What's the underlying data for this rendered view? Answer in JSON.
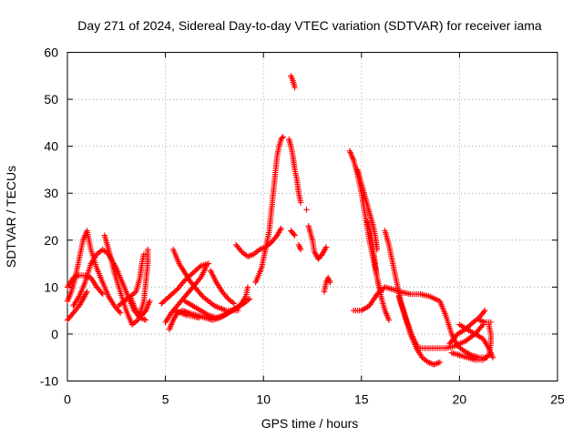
{
  "chart_data": {
    "type": "scatter",
    "title": "Day 271 of 2024, Sidereal Day-to-day VTEC variation (SDTVAR) for receiver iama",
    "xlabel": "GPS time / hours",
    "ylabel": "SDTVAR / TECUs",
    "xlim": [
      0,
      25
    ],
    "ylim": [
      -10,
      60
    ],
    "xticks": [
      0,
      5,
      10,
      15,
      20,
      25
    ],
    "yticks": [
      -10,
      0,
      10,
      20,
      30,
      40,
      50,
      60
    ],
    "xtick_labels": [
      "0",
      "5",
      "10",
      "15",
      "20",
      "25"
    ],
    "ytick_labels": [
      "-10",
      "0",
      "10",
      "20",
      "30",
      "40",
      "50",
      "60"
    ],
    "grid": true,
    "marker": "+",
    "color": "#ff0000",
    "legend": "none",
    "series": [
      {
        "name": "track-01",
        "points": [
          [
            0.0,
            7
          ],
          [
            0.2,
            9
          ],
          [
            0.4,
            12
          ],
          [
            0.6,
            16
          ],
          [
            0.8,
            20
          ],
          [
            1.0,
            22
          ],
          [
            1.2,
            18
          ],
          [
            1.5,
            14
          ],
          [
            1.8,
            11
          ],
          [
            2.1,
            8
          ],
          [
            2.4,
            6
          ],
          [
            2.7,
            4.5
          ]
        ]
      },
      {
        "name": "track-02",
        "points": [
          [
            0.0,
            10
          ],
          [
            0.3,
            12
          ],
          [
            0.6,
            12.5
          ],
          [
            0.9,
            12.5
          ],
          [
            1.2,
            12
          ],
          [
            1.5,
            10
          ],
          [
            1.8,
            8.5
          ]
        ]
      },
      {
        "name": "track-03",
        "points": [
          [
            0.0,
            3
          ],
          [
            0.3,
            4.5
          ],
          [
            0.6,
            6
          ],
          [
            0.8,
            7.5
          ],
          [
            1.0,
            9
          ]
        ]
      },
      {
        "name": "track-04",
        "points": [
          [
            0.3,
            6
          ],
          [
            0.6,
            8
          ],
          [
            0.9,
            11
          ],
          [
            1.2,
            15
          ],
          [
            1.5,
            17
          ],
          [
            1.8,
            18
          ],
          [
            2.1,
            17
          ],
          [
            2.5,
            14
          ],
          [
            2.8,
            11
          ],
          [
            3.1,
            8
          ],
          [
            3.4,
            5
          ],
          [
            3.7,
            3.5
          ],
          [
            4.0,
            3
          ]
        ]
      },
      {
        "name": "track-05",
        "points": [
          [
            1.9,
            21
          ],
          [
            2.1,
            18
          ],
          [
            2.4,
            13
          ],
          [
            2.7,
            9
          ],
          [
            3.0,
            5
          ],
          [
            3.3,
            2
          ],
          [
            3.6,
            3
          ],
          [
            3.9,
            7
          ],
          [
            4.0,
            11
          ],
          [
            4.1,
            15
          ],
          [
            4.1,
            18
          ]
        ]
      },
      {
        "name": "track-06",
        "points": [
          [
            2.6,
            6
          ],
          [
            2.9,
            7
          ],
          [
            3.2,
            8
          ],
          [
            3.5,
            9
          ],
          [
            3.7,
            12
          ],
          [
            3.8,
            15
          ],
          [
            3.9,
            17
          ]
        ]
      },
      {
        "name": "track-07",
        "points": [
          [
            3.2,
            8
          ],
          [
            3.5,
            5
          ],
          [
            3.8,
            4
          ],
          [
            4.0,
            5
          ],
          [
            4.2,
            7
          ]
        ]
      },
      {
        "name": "track-08",
        "points": [
          [
            4.8,
            6.5
          ],
          [
            5.2,
            8
          ],
          [
            5.6,
            9.5
          ],
          [
            6.0,
            11.5
          ],
          [
            6.4,
            13
          ],
          [
            6.8,
            14.5
          ],
          [
            7.2,
            15
          ]
        ]
      },
      {
        "name": "track-09",
        "points": [
          [
            5.0,
            2.5
          ],
          [
            5.3,
            4.5
          ],
          [
            5.6,
            6
          ],
          [
            6.0,
            8
          ],
          [
            6.4,
            10
          ],
          [
            6.8,
            12
          ],
          [
            7.1,
            14.5
          ]
        ]
      },
      {
        "name": "track-10",
        "points": [
          [
            5.2,
            1
          ],
          [
            5.4,
            3
          ],
          [
            5.6,
            4.5
          ],
          [
            5.9,
            5
          ],
          [
            6.2,
            4.5
          ],
          [
            6.6,
            4
          ],
          [
            7.0,
            3.5
          ],
          [
            7.4,
            3
          ],
          [
            7.8,
            3.5
          ],
          [
            8.2,
            4.5
          ],
          [
            8.6,
            5.5
          ],
          [
            9.0,
            6.5
          ],
          [
            9.3,
            7.5
          ]
        ]
      },
      {
        "name": "track-11",
        "points": [
          [
            5.4,
            18
          ],
          [
            5.7,
            15
          ],
          [
            6.0,
            13
          ],
          [
            6.3,
            11
          ],
          [
            6.6,
            9.5
          ],
          [
            6.9,
            8
          ],
          [
            7.2,
            7
          ],
          [
            7.5,
            6
          ],
          [
            7.8,
            5.5
          ],
          [
            8.1,
            5
          ],
          [
            8.4,
            5
          ],
          [
            8.7,
            5
          ]
        ]
      },
      {
        "name": "track-12",
        "points": [
          [
            5.5,
            5
          ],
          [
            5.8,
            4.5
          ],
          [
            6.1,
            4
          ],
          [
            6.4,
            3.8
          ],
          [
            6.7,
            3.5
          ]
        ]
      },
      {
        "name": "track-13",
        "points": [
          [
            6.0,
            7
          ],
          [
            6.4,
            6
          ],
          [
            6.8,
            5
          ],
          [
            7.2,
            4
          ],
          [
            7.6,
            3.5
          ],
          [
            8.0,
            4
          ],
          [
            8.4,
            5
          ],
          [
            8.8,
            6
          ],
          [
            9.1,
            8
          ],
          [
            9.2,
            10
          ]
        ]
      },
      {
        "name": "track-14",
        "points": [
          [
            7.3,
            13.5
          ],
          [
            7.6,
            11
          ],
          [
            7.9,
            9
          ],
          [
            8.2,
            7.5
          ],
          [
            8.5,
            6.5
          ]
        ]
      },
      {
        "name": "track-15",
        "points": [
          [
            8.6,
            19
          ],
          [
            8.9,
            17.5
          ],
          [
            9.2,
            16.5
          ],
          [
            9.5,
            17
          ],
          [
            9.8,
            18
          ],
          [
            10.1,
            18.5
          ],
          [
            10.4,
            19.5
          ],
          [
            10.7,
            21
          ],
          [
            10.9,
            22.5
          ]
        ]
      },
      {
        "name": "track-16",
        "points": [
          [
            9.6,
            11
          ],
          [
            9.9,
            14
          ],
          [
            10.1,
            18
          ],
          [
            10.3,
            22
          ],
          [
            10.4,
            26
          ],
          [
            10.5,
            30
          ],
          [
            10.6,
            34
          ],
          [
            10.7,
            38
          ],
          [
            10.8,
            40
          ],
          [
            10.9,
            41.5
          ],
          [
            11.0,
            42
          ]
        ]
      },
      {
        "name": "track-17",
        "points": [
          [
            11.4,
            55
          ],
          [
            11.5,
            54
          ],
          [
            11.6,
            52.5
          ]
        ]
      },
      {
        "name": "track-18",
        "points": [
          [
            11.3,
            41.5
          ],
          [
            11.4,
            40
          ],
          [
            11.5,
            38
          ],
          [
            11.6,
            35
          ],
          [
            11.7,
            33
          ],
          [
            11.8,
            30
          ],
          [
            11.9,
            28
          ]
        ]
      },
      {
        "name": "track-19",
        "points": [
          [
            11.4,
            22
          ],
          [
            11.6,
            21
          ]
        ]
      },
      {
        "name": "track-20",
        "points": [
          [
            11.8,
            19
          ],
          [
            11.9,
            18
          ]
        ]
      },
      {
        "name": "track-21",
        "points": [
          [
            12.2,
            26.5
          ]
        ]
      },
      {
        "name": "track-22",
        "points": [
          [
            12.3,
            23
          ],
          [
            12.5,
            20
          ],
          [
            12.6,
            17.5
          ],
          [
            12.8,
            16
          ],
          [
            13.0,
            17
          ],
          [
            13.2,
            18.5
          ]
        ]
      },
      {
        "name": "track-23",
        "points": [
          [
            13.1,
            9
          ],
          [
            13.2,
            11
          ],
          [
            13.3,
            12
          ],
          [
            13.4,
            11
          ]
        ]
      },
      {
        "name": "track-24",
        "points": [
          [
            14.4,
            39
          ],
          [
            14.6,
            37
          ],
          [
            14.8,
            34
          ],
          [
            15.0,
            30
          ],
          [
            15.2,
            25
          ],
          [
            15.4,
            20
          ],
          [
            15.6,
            16
          ],
          [
            15.8,
            12
          ],
          [
            16.0,
            8
          ],
          [
            16.2,
            5
          ],
          [
            16.4,
            3
          ]
        ]
      },
      {
        "name": "track-25",
        "points": [
          [
            14.8,
            35
          ],
          [
            15.0,
            32
          ],
          [
            15.2,
            29
          ],
          [
            15.4,
            26
          ],
          [
            15.6,
            23
          ],
          [
            15.7,
            21
          ],
          [
            15.8,
            18
          ]
        ]
      },
      {
        "name": "track-26",
        "points": [
          [
            15.3,
            24
          ],
          [
            15.5,
            21
          ],
          [
            15.6,
            18
          ],
          [
            15.7,
            15
          ],
          [
            15.8,
            12
          ],
          [
            15.9,
            10
          ],
          [
            16.0,
            9
          ]
        ]
      },
      {
        "name": "track-27",
        "points": [
          [
            14.6,
            5
          ],
          [
            15.0,
            5
          ],
          [
            15.4,
            6
          ],
          [
            15.8,
            8.5
          ],
          [
            16.2,
            10
          ],
          [
            16.6,
            9.5
          ],
          [
            17.0,
            9
          ],
          [
            17.5,
            8.5
          ],
          [
            18.0,
            8.5
          ],
          [
            18.5,
            8
          ],
          [
            19.0,
            7
          ],
          [
            19.3,
            4
          ],
          [
            19.6,
            0
          ],
          [
            19.9,
            -2.5
          ],
          [
            20.2,
            -3.5
          ],
          [
            20.6,
            -4.5
          ],
          [
            21.0,
            -5
          ],
          [
            21.4,
            -5
          ]
        ]
      },
      {
        "name": "track-28",
        "points": [
          [
            16.2,
            22
          ],
          [
            16.4,
            19
          ],
          [
            16.6,
            15
          ],
          [
            16.8,
            11
          ],
          [
            17.0,
            7
          ],
          [
            17.3,
            3
          ],
          [
            17.6,
            -0.5
          ],
          [
            17.9,
            -3
          ],
          [
            18.3,
            -3
          ],
          [
            18.8,
            -3
          ],
          [
            19.3,
            -3
          ],
          [
            19.8,
            -2.5
          ],
          [
            20.3,
            -1.5
          ],
          [
            20.8,
            0
          ],
          [
            21.2,
            2
          ]
        ]
      },
      {
        "name": "track-29",
        "points": [
          [
            16.9,
            8
          ],
          [
            17.2,
            4
          ],
          [
            17.5,
            0
          ],
          [
            17.8,
            -3
          ],
          [
            18.1,
            -5
          ],
          [
            18.4,
            -6
          ],
          [
            18.7,
            -6.5
          ],
          [
            19.0,
            -6
          ]
        ]
      },
      {
        "name": "track-30",
        "points": [
          [
            19.5,
            -2
          ],
          [
            19.9,
            0
          ],
          [
            20.3,
            1
          ],
          [
            20.7,
            2.5
          ],
          [
            21.0,
            3.5
          ],
          [
            21.3,
            5
          ]
        ]
      },
      {
        "name": "track-31",
        "points": [
          [
            19.6,
            -4
          ],
          [
            20.0,
            -4.5
          ],
          [
            20.4,
            -5
          ],
          [
            20.8,
            -5.5
          ],
          [
            21.2,
            -5.5
          ],
          [
            21.5,
            -4.5
          ],
          [
            21.6,
            -2
          ],
          [
            21.6,
            0
          ],
          [
            21.5,
            2
          ]
        ]
      },
      {
        "name": "track-32",
        "points": [
          [
            20.0,
            2
          ],
          [
            20.4,
            1
          ],
          [
            20.8,
            0
          ],
          [
            21.2,
            -1
          ],
          [
            21.5,
            -3
          ],
          [
            21.7,
            -5
          ]
        ]
      },
      {
        "name": "track-33",
        "points": [
          [
            21.0,
            3
          ],
          [
            21.3,
            2.5
          ],
          [
            21.6,
            2.5
          ]
        ]
      }
    ]
  }
}
